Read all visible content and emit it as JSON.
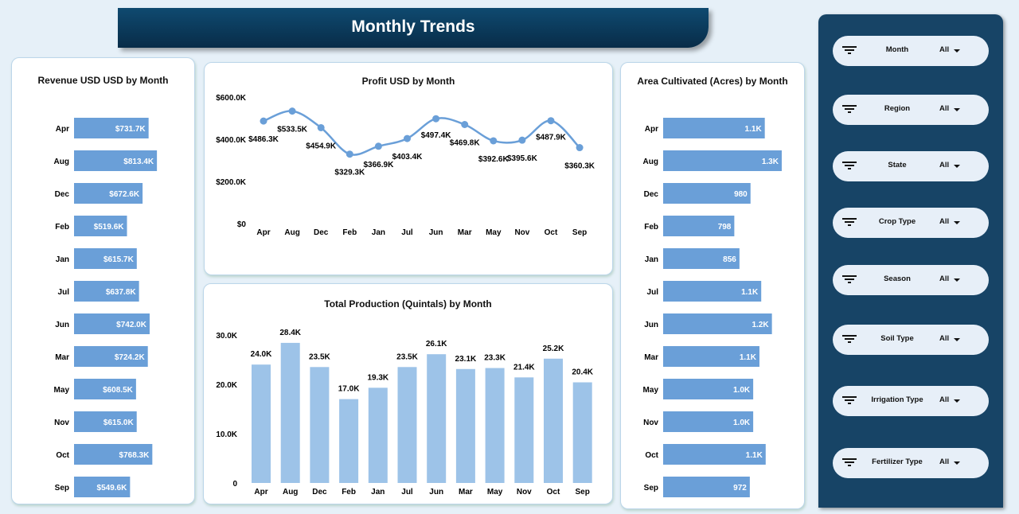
{
  "title": "Monthly Trends",
  "revenue": {
    "title": "Revenue USD USD by Month",
    "type": "bar",
    "categories": [
      "Apr",
      "Aug",
      "Dec",
      "Feb",
      "Jan",
      "Jul",
      "Jun",
      "Mar",
      "May",
      "Nov",
      "Oct",
      "Sep"
    ],
    "values": [
      731.7,
      813.4,
      672.6,
      519.6,
      615.7,
      637.8,
      742.0,
      724.2,
      608.5,
      615.0,
      768.3,
      549.6
    ],
    "labels": [
      "$731.7K",
      "$813.4K",
      "$672.6K",
      "$519.6K",
      "$615.7K",
      "$637.8K",
      "$742.0K",
      "$724.2K",
      "$608.5K",
      "$615.0K",
      "$768.3K",
      "$549.6K"
    ],
    "unit": "K USD"
  },
  "chart_data": [
    {
      "title": "Profit USD by Month",
      "type": "line",
      "categories": [
        "Apr",
        "Aug",
        "Dec",
        "Feb",
        "Jan",
        "Jul",
        "Jun",
        "Mar",
        "May",
        "Nov",
        "Oct",
        "Sep"
      ],
      "values": [
        486.3,
        533.5,
        454.9,
        329.3,
        366.9,
        403.4,
        497.4,
        469.8,
        392.6,
        395.6,
        487.9,
        360.3
      ],
      "labels": [
        "$486.3K",
        "$533.5K",
        "$454.9K",
        "$329.3K",
        "$366.9K",
        "$403.4K",
        "$497.4K",
        "$469.8K",
        "$392.6K",
        "$395.6K",
        "$487.9K",
        "$360.3K"
      ],
      "yticks": [
        "$0",
        "$200.0K",
        "$400.0K",
        "$600.0K"
      ],
      "ylim": [
        0,
        600
      ],
      "color": "#6a9fd8"
    },
    {
      "title": "Total Production (Quintals) by Month",
      "type": "bar",
      "categories": [
        "Apr",
        "Aug",
        "Dec",
        "Feb",
        "Jan",
        "Jul",
        "Jun",
        "Mar",
        "May",
        "Nov",
        "Oct",
        "Sep"
      ],
      "values": [
        24.0,
        28.4,
        23.5,
        17.0,
        19.3,
        23.5,
        26.1,
        23.1,
        23.3,
        21.4,
        25.2,
        20.4
      ],
      "labels": [
        "24.0K",
        "28.4K",
        "23.5K",
        "17.0K",
        "19.3K",
        "23.5K",
        "26.1K",
        "23.1K",
        "23.3K",
        "21.4K",
        "25.2K",
        "20.4K"
      ],
      "yticks": [
        "0",
        "10.0K",
        "20.0K",
        "30.0K"
      ],
      "ylim": [
        0,
        30
      ],
      "color": "#9dc3e8"
    },
    {
      "title": "Area Cultivated (Acres) by Month",
      "type": "bar",
      "categories": [
        "Apr",
        "Aug",
        "Dec",
        "Feb",
        "Jan",
        "Jul",
        "Jun",
        "Mar",
        "May",
        "Nov",
        "Oct",
        "Sep"
      ],
      "values": [
        1140,
        1330,
        980,
        798,
        856,
        1100,
        1220,
        1080,
        1010,
        1010,
        1150,
        972
      ],
      "labels": [
        "1.1K",
        "1.3K",
        "980",
        "798",
        "856",
        "1.1K",
        "1.2K",
        "1.1K",
        "1.0K",
        "1.0K",
        "1.1K",
        "972"
      ],
      "color": "#6a9fd8"
    }
  ],
  "filters": [
    {
      "label": "Month",
      "value": "All"
    },
    {
      "label": "Region",
      "value": "All"
    },
    {
      "label": "State",
      "value": "All"
    },
    {
      "label": "Crop Type",
      "value": "All"
    },
    {
      "label": "Season",
      "value": "All"
    },
    {
      "label": "Soil Type",
      "value": "All"
    },
    {
      "label": "Irrigation Type",
      "value": "All"
    },
    {
      "label": "Fertilizer Type",
      "value": "All"
    }
  ]
}
